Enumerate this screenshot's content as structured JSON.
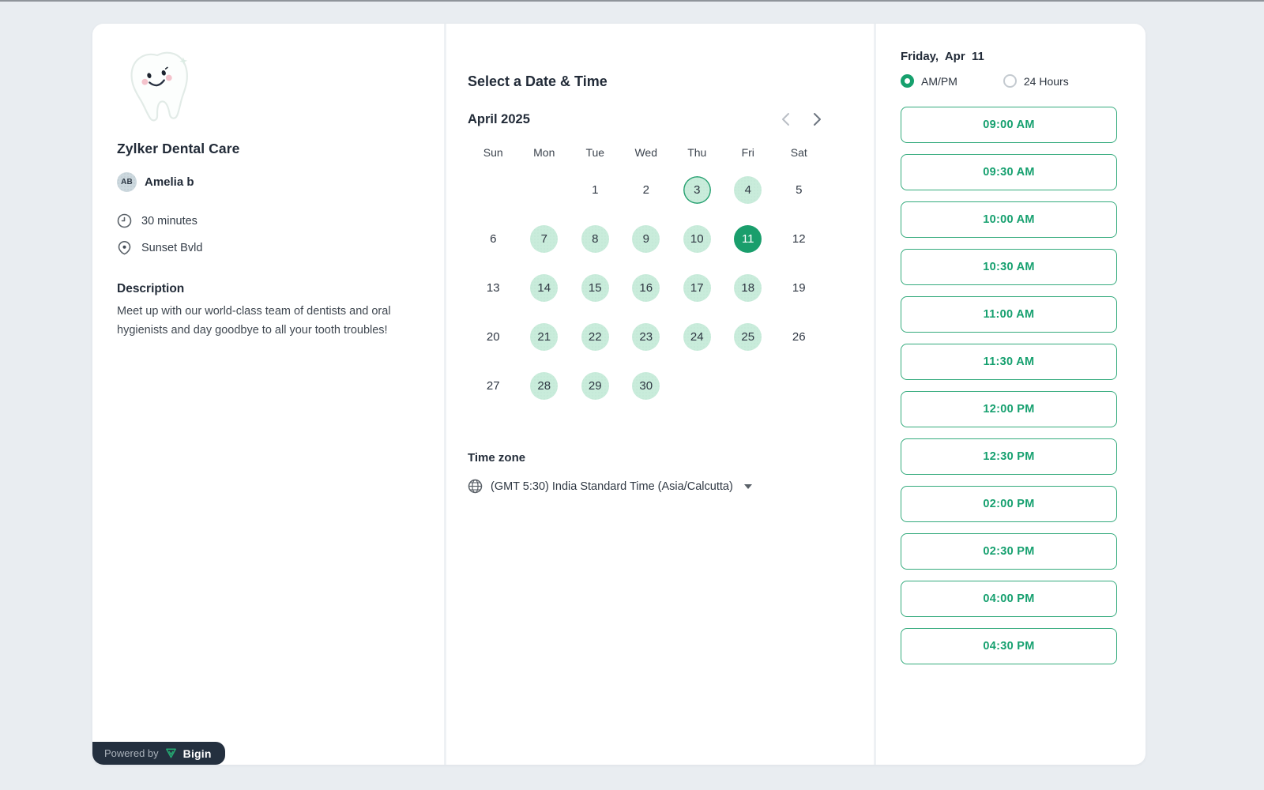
{
  "colors": {
    "accent_green": "#1a9e6c",
    "available_day_fill": "#c9ecdb",
    "today_ring": "#2aa273",
    "slot_border": "#35ab7d",
    "badge_navy": "#24303f",
    "page_background": "#e9edf1"
  },
  "business": {
    "name": "Zylker Dental Care",
    "host_initials": "AB",
    "host_name": "Amelia b",
    "duration": "30 minutes",
    "location": "Sunset Bvld",
    "description_title": "Description",
    "description": "Meet up with our world-class team of dentists and oral hygienists and day goodbye to all your tooth troubles!"
  },
  "scheduler": {
    "title": "Select a Date & Time",
    "month_label": "April 2025",
    "weekdays": [
      "Sun",
      "Mon",
      "Tue",
      "Wed",
      "Thu",
      "Fri",
      "Sat"
    ],
    "calendar_cells": [
      {
        "day": "",
        "state": "empty"
      },
      {
        "day": "",
        "state": "empty"
      },
      {
        "day": "1",
        "state": "plain"
      },
      {
        "day": "2",
        "state": "plain"
      },
      {
        "day": "3",
        "state": "today"
      },
      {
        "day": "4",
        "state": "available"
      },
      {
        "day": "5",
        "state": "plain"
      },
      {
        "day": "6",
        "state": "plain"
      },
      {
        "day": "7",
        "state": "available"
      },
      {
        "day": "8",
        "state": "available"
      },
      {
        "day": "9",
        "state": "available"
      },
      {
        "day": "10",
        "state": "available"
      },
      {
        "day": "11",
        "state": "selected"
      },
      {
        "day": "12",
        "state": "plain"
      },
      {
        "day": "13",
        "state": "plain"
      },
      {
        "day": "14",
        "state": "available"
      },
      {
        "day": "15",
        "state": "available"
      },
      {
        "day": "16",
        "state": "available"
      },
      {
        "day": "17",
        "state": "available"
      },
      {
        "day": "18",
        "state": "available"
      },
      {
        "day": "19",
        "state": "plain"
      },
      {
        "day": "20",
        "state": "plain"
      },
      {
        "day": "21",
        "state": "available"
      },
      {
        "day": "22",
        "state": "available"
      },
      {
        "day": "23",
        "state": "available"
      },
      {
        "day": "24",
        "state": "available"
      },
      {
        "day": "25",
        "state": "available"
      },
      {
        "day": "26",
        "state": "plain"
      },
      {
        "day": "27",
        "state": "plain"
      },
      {
        "day": "28",
        "state": "available"
      },
      {
        "day": "29",
        "state": "available"
      },
      {
        "day": "30",
        "state": "available"
      },
      {
        "day": "",
        "state": "empty"
      },
      {
        "day": "",
        "state": "empty"
      },
      {
        "day": "",
        "state": "empty"
      }
    ],
    "timezone_label": "Time zone",
    "timezone_value": "(GMT 5:30) India Standard Time (Asia/Calcutta)"
  },
  "slots_panel": {
    "date_label": "Friday,  Apr  11",
    "format_options": [
      {
        "label": "AM/PM",
        "selected": true
      },
      {
        "label": "24 Hours",
        "selected": false
      }
    ],
    "slots": [
      "09:00 AM",
      "09:30 AM",
      "10:00 AM",
      "10:30 AM",
      "11:00 AM",
      "11:30 AM",
      "12:00 PM",
      "12:30 PM",
      "02:00 PM",
      "02:30 PM",
      "04:00 PM",
      "04:30 PM"
    ]
  },
  "footer": {
    "powered_by": "Powered by",
    "brand": "Bigin"
  }
}
